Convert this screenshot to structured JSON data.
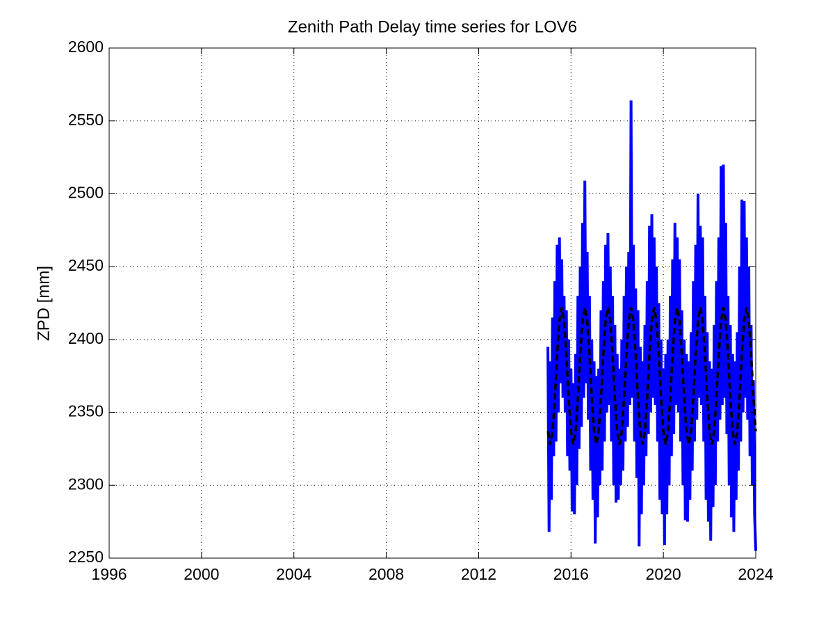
{
  "chart_data": {
    "type": "line",
    "title": "Zenith Path Delay time series for LOV6",
    "ylabel": "ZPD [mm]",
    "xlim": [
      1996,
      2024
    ],
    "xticks": [
      1996,
      2000,
      2004,
      2008,
      2012,
      2016,
      2020,
      2024
    ],
    "ylim": [
      2250,
      2600
    ],
    "yticks": [
      2250,
      2300,
      2350,
      2400,
      2450,
      2500,
      2550,
      2600
    ],
    "grid": true,
    "series": [
      {
        "color": "#0000ff",
        "linestyle": "solid",
        "x": [
          2015,
          2015.05,
          2015.1,
          2015.15,
          2015.2,
          2015.25,
          2015.3,
          2015.35,
          2015.4,
          2015.45,
          2015.5,
          2015.55,
          2015.6,
          2015.65,
          2015.7,
          2015.75,
          2015.8,
          2015.85,
          2015.9,
          2015.95,
          2016,
          2016.05,
          2016.1,
          2016.15,
          2016.2,
          2016.25,
          2016.3,
          2016.35,
          2016.4,
          2016.45,
          2016.5,
          2016.55,
          2016.6,
          2016.65,
          2016.7,
          2016.75,
          2016.8,
          2016.85,
          2016.9,
          2016.95,
          2017,
          2017.05,
          2017.1,
          2017.15,
          2017.2,
          2017.25,
          2017.3,
          2017.35,
          2017.4,
          2017.45,
          2017.5,
          2017.55,
          2017.6,
          2017.65,
          2017.7,
          2017.75,
          2017.8,
          2017.85,
          2017.9,
          2017.95,
          2018,
          2018.05,
          2018.1,
          2018.15,
          2018.2,
          2018.25,
          2018.3,
          2018.35,
          2018.4,
          2018.45,
          2018.5,
          2018.55,
          2018.6,
          2018.65,
          2018.7,
          2018.75,
          2018.8,
          2018.85,
          2018.9,
          2018.95,
          2019,
          2019.05,
          2019.1,
          2019.15,
          2019.2,
          2019.25,
          2019.3,
          2019.35,
          2019.4,
          2019.45,
          2019.5,
          2019.55,
          2019.6,
          2019.65,
          2019.7,
          2019.75,
          2019.8,
          2019.85,
          2019.9,
          2019.95,
          2020,
          2020.05,
          2020.1,
          2020.15,
          2020.2,
          2020.25,
          2020.3,
          2020.35,
          2020.4,
          2020.45,
          2020.5,
          2020.55,
          2020.6,
          2020.65,
          2020.7,
          2020.75,
          2020.8,
          2020.85,
          2020.9,
          2020.95,
          2021,
          2021.05,
          2021.1,
          2021.15,
          2021.2,
          2021.25,
          2021.3,
          2021.35,
          2021.4,
          2021.45,
          2021.5,
          2021.55,
          2021.6,
          2021.65,
          2021.7,
          2021.75,
          2021.8,
          2021.85,
          2021.9,
          2021.95,
          2022,
          2022.05,
          2022.1,
          2022.15,
          2022.2,
          2022.25,
          2022.3,
          2022.35,
          2022.4,
          2022.45,
          2022.5,
          2022.55,
          2022.6,
          2022.65,
          2022.7,
          2022.75,
          2022.8,
          2022.85,
          2022.9,
          2022.95,
          2023,
          2023.05,
          2023.1,
          2023.15,
          2023.2,
          2023.25,
          2023.3,
          2023.35,
          2023.4,
          2023.45,
          2023.5,
          2023.55,
          2023.6,
          2023.65,
          2023.7,
          2023.75,
          2023.8,
          2023.85,
          2023.9,
          2023.95,
          2024
        ],
        "values": [
          2395,
          2268,
          2385,
          2290,
          2415,
          2320,
          2440,
          2330,
          2465,
          2350,
          2470,
          2370,
          2455,
          2360,
          2430,
          2350,
          2420,
          2320,
          2400,
          2310,
          2380,
          2282,
          2370,
          2280,
          2390,
          2300,
          2430,
          2325,
          2450,
          2340,
          2480,
          2360,
          2509,
          2370,
          2460,
          2345,
          2430,
          2310,
          2400,
          2290,
          2385,
          2260,
          2375,
          2278,
          2380,
          2300,
          2420,
          2310,
          2440,
          2330,
          2465,
          2350,
          2473,
          2355,
          2450,
          2330,
          2430,
          2300,
          2410,
          2288,
          2390,
          2290,
          2380,
          2300,
          2400,
          2310,
          2430,
          2330,
          2450,
          2340,
          2460,
          2355,
          2564,
          2360,
          2465,
          2330,
          2435,
          2305,
          2420,
          2258,
          2395,
          2280,
          2385,
          2300,
          2410,
          2320,
          2440,
          2335,
          2478,
          2350,
          2486,
          2360,
          2470,
          2355,
          2450,
          2330,
          2425,
          2290,
          2400,
          2280,
          2380,
          2259,
          2390,
          2280,
          2400,
          2300,
          2430,
          2320,
          2455,
          2335,
          2480,
          2355,
          2470,
          2350,
          2455,
          2330,
          2420,
          2300,
          2400,
          2276,
          2390,
          2275,
          2385,
          2290,
          2405,
          2310,
          2440,
          2330,
          2465,
          2345,
          2500,
          2360,
          2478,
          2355,
          2470,
          2330,
          2430,
          2290,
          2405,
          2275,
          2385,
          2262,
          2380,
          2285,
          2410,
          2300,
          2440,
          2330,
          2470,
          2345,
          2519,
          2355,
          2520,
          2360,
          2480,
          2335,
          2430,
          2300,
          2410,
          2278,
          2390,
          2268,
          2385,
          2290,
          2405,
          2310,
          2450,
          2330,
          2496,
          2350,
          2495,
          2360,
          2470,
          2345,
          2450,
          2320,
          2410,
          2300,
          2372,
          2280,
          2255
        ]
      },
      {
        "color": "#000000",
        "linestyle": "dashed",
        "x": [
          2015,
          2015.1,
          2015.2,
          2015.3,
          2015.4,
          2015.5,
          2015.6,
          2015.7,
          2015.8,
          2015.9,
          2016,
          2016.1,
          2016.2,
          2016.3,
          2016.4,
          2016.5,
          2016.6,
          2016.7,
          2016.8,
          2016.9,
          2017,
          2017.1,
          2017.2,
          2017.3,
          2017.4,
          2017.5,
          2017.6,
          2017.7,
          2017.8,
          2017.9,
          2018,
          2018.1,
          2018.2,
          2018.3,
          2018.4,
          2018.5,
          2018.6,
          2018.7,
          2018.8,
          2018.9,
          2019,
          2019.1,
          2019.2,
          2019.3,
          2019.4,
          2019.5,
          2019.6,
          2019.7,
          2019.8,
          2019.9,
          2020,
          2020.1,
          2020.2,
          2020.3,
          2020.4,
          2020.5,
          2020.6,
          2020.7,
          2020.8,
          2020.9,
          2021,
          2021.1,
          2021.2,
          2021.3,
          2021.4,
          2021.5,
          2021.6,
          2021.7,
          2021.8,
          2021.9,
          2022,
          2022.1,
          2022.2,
          2022.3,
          2022.4,
          2022.5,
          2022.6,
          2022.7,
          2022.8,
          2022.9,
          2023,
          2023.1,
          2023.2,
          2023.3,
          2023.4,
          2023.5,
          2023.6,
          2023.7,
          2023.8,
          2023.9,
          2024
        ],
        "values": [
          2337,
          2328,
          2337,
          2360,
          2390,
          2413,
          2422,
          2413,
          2390,
          2360,
          2337,
          2328,
          2337,
          2360,
          2390,
          2413,
          2422,
          2413,
          2390,
          2360,
          2337,
          2328,
          2337,
          2360,
          2390,
          2413,
          2422,
          2413,
          2390,
          2360,
          2337,
          2328,
          2337,
          2360,
          2390,
          2413,
          2422,
          2413,
          2390,
          2360,
          2337,
          2328,
          2337,
          2360,
          2390,
          2413,
          2422,
          2413,
          2390,
          2360,
          2337,
          2328,
          2337,
          2360,
          2390,
          2413,
          2422,
          2413,
          2390,
          2360,
          2337,
          2328,
          2337,
          2360,
          2390,
          2413,
          2422,
          2413,
          2390,
          2360,
          2337,
          2328,
          2337,
          2360,
          2390,
          2413,
          2422,
          2413,
          2390,
          2360,
          2337,
          2328,
          2337,
          2360,
          2390,
          2413,
          2422,
          2413,
          2390,
          2360,
          2337
        ]
      }
    ]
  }
}
